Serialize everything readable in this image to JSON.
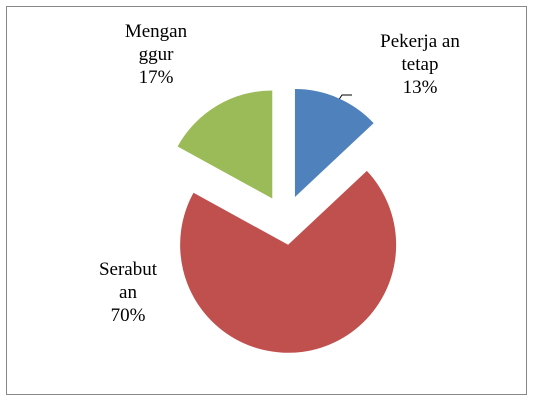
{
  "chart_data": {
    "type": "pie",
    "categories": [
      "Pekerja an tetap",
      "Serabut an",
      "Mengan ggur"
    ],
    "values": [
      13,
      70,
      17
    ],
    "value_labels": [
      "13%",
      "70%",
      "17%"
    ],
    "colors": [
      "#4f81bd",
      "#c0504d",
      "#9bbb59"
    ]
  }
}
